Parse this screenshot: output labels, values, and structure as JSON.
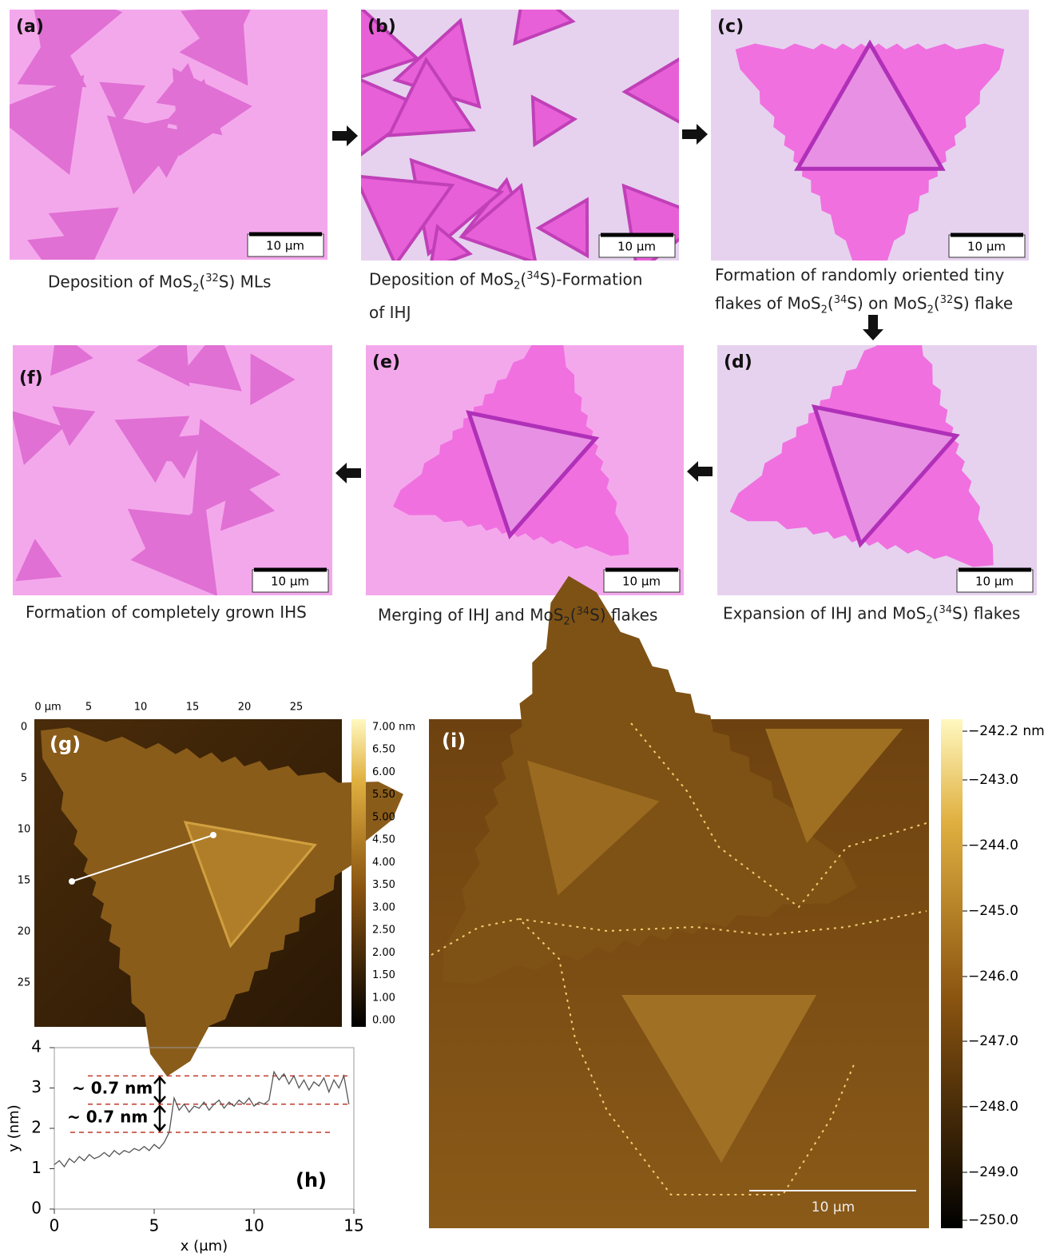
{
  "panels": [
    {
      "label": "(a)",
      "scale_bar": "10 μm",
      "caption": [
        [
          "Deposition of MoS",
          {
            "sub": "2"
          },
          "(",
          {
            "sup": "32"
          },
          "S) MLs"
        ]
      ]
    },
    {
      "label": "(b)",
      "scale_bar": "10 μm",
      "caption": [
        [
          "Deposition of MoS",
          {
            "sub": "2"
          },
          "(",
          {
            "sup": "34"
          },
          "S)-Formation"
        ],
        [
          "of IHJ"
        ]
      ]
    },
    {
      "label": "(c)",
      "scale_bar": "10 μm",
      "caption": [
        [
          "Formation of randomly oriented tiny"
        ],
        [
          "flakes of MoS",
          {
            "sub": "2"
          },
          "(",
          {
            "sup": "34"
          },
          "S) on MoS",
          {
            "sub": "2"
          },
          "(",
          {
            "sup": "32"
          },
          "S) flake"
        ]
      ]
    },
    {
      "label": "(d)",
      "scale_bar": "10 μm",
      "caption": [
        [
          "Expansion of IHJ and MoS",
          {
            "sub": "2"
          },
          "(",
          {
            "sup": "34"
          },
          "S) flakes"
        ]
      ]
    },
    {
      "label": "(e)",
      "scale_bar": "10 μm",
      "caption": [
        [
          "Merging of IHJ and MoS",
          {
            "sub": "2"
          },
          "(",
          {
            "sup": "34"
          },
          "S) flakes"
        ]
      ]
    },
    {
      "label": "(f)",
      "scale_bar": "10 μm",
      "caption": [
        [
          "Formation of completely grown IHS"
        ]
      ]
    }
  ],
  "afm_g": {
    "label": "(g)",
    "x_ticks": [
      "0 μm",
      "5",
      "10",
      "15",
      "20",
      "25"
    ],
    "y_ticks": [
      "0",
      "5",
      "10",
      "15",
      "20",
      "25"
    ],
    "colorbar_ticks": [
      "7.00 nm",
      "6.50",
      "6.00",
      "5.50",
      "5.00",
      "4.50",
      "4.00",
      "3.50",
      "3.00",
      "2.50",
      "2.00",
      "1.50",
      "1.00",
      "0.00"
    ]
  },
  "chart_data": {
    "type": "line",
    "panel_label": "(h)",
    "x_label": "x (μm)",
    "y_label": "y (nm)",
    "x": [
      0,
      0.25,
      0.5,
      0.75,
      1,
      1.25,
      1.5,
      1.75,
      2,
      2.25,
      2.5,
      2.75,
      3,
      3.25,
      3.5,
      3.75,
      4,
      4.25,
      4.5,
      4.75,
      5,
      5.25,
      5.5,
      5.75,
      6,
      6.25,
      6.5,
      6.75,
      7,
      7.25,
      7.5,
      7.75,
      8,
      8.25,
      8.5,
      8.75,
      9,
      9.25,
      9.5,
      9.75,
      10,
      10.25,
      10.5,
      10.75,
      11,
      11.25,
      11.5,
      11.75,
      12,
      12.25,
      12.5,
      12.75,
      13,
      13.25,
      13.5,
      13.75,
      14,
      14.25,
      14.5,
      14.75
    ],
    "series": [
      {
        "color": "#555555",
        "values": [
          1.1,
          1.2,
          1.05,
          1.25,
          1.15,
          1.3,
          1.2,
          1.35,
          1.25,
          1.3,
          1.4,
          1.3,
          1.45,
          1.35,
          1.45,
          1.4,
          1.5,
          1.45,
          1.55,
          1.45,
          1.6,
          1.5,
          1.65,
          1.9,
          2.75,
          2.45,
          2.6,
          2.4,
          2.55,
          2.5,
          2.65,
          2.45,
          2.6,
          2.7,
          2.5,
          2.65,
          2.55,
          2.7,
          2.6,
          2.75,
          2.55,
          2.65,
          2.6,
          2.7,
          3.4,
          3.2,
          3.35,
          3.1,
          3.3,
          3.0,
          3.2,
          2.95,
          3.15,
          3.05,
          3.25,
          2.9,
          3.2,
          3.0,
          3.3,
          2.6
        ]
      }
    ],
    "xlim": [
      0,
      15
    ],
    "ylim": [
      0,
      4
    ],
    "xticks": [
      0,
      5,
      10,
      15
    ],
    "yticks": [
      0,
      1,
      2,
      3,
      4
    ],
    "reference_lines": [
      1.9,
      2.6,
      3.3
    ],
    "reference_color": "#c0392b",
    "annotations": [
      "~ 0.7 nm",
      "~ 0.7 nm"
    ]
  },
  "afm_i": {
    "label": "(i)",
    "scale_bar": "10 μm",
    "colorbar_ticks": [
      "−242.2 nm",
      "−243.0",
      "−244.0",
      "−245.0",
      "−246.0",
      "−247.0",
      "−248.0",
      "−249.0",
      "−250.0"
    ]
  }
}
